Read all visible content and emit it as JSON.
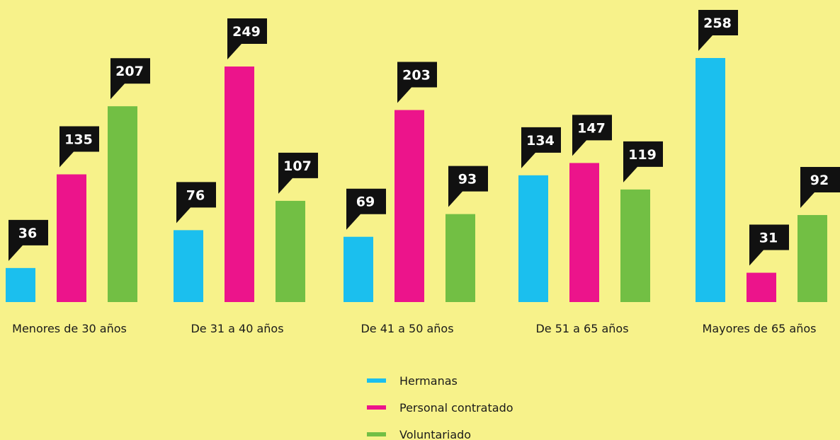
{
  "chart_data": {
    "type": "bar",
    "categories": [
      "Menores de 30 años",
      "De 31 a 40 años",
      "De 41 a 50 años",
      "De 51 a 65 años",
      "Mayores de 65 años"
    ],
    "series": [
      {
        "name": "Hermanas",
        "color": "#1bbfee",
        "values": [
          36,
          76,
          69,
          134,
          258
        ]
      },
      {
        "name": "Personal contratado",
        "color": "#ec148b",
        "values": [
          135,
          249,
          203,
          147,
          31
        ]
      },
      {
        "name": "Voluntariado",
        "color": "#72bf44",
        "values": [
          207,
          107,
          93,
          119,
          92
        ]
      }
    ],
    "legend": "bottom"
  }
}
